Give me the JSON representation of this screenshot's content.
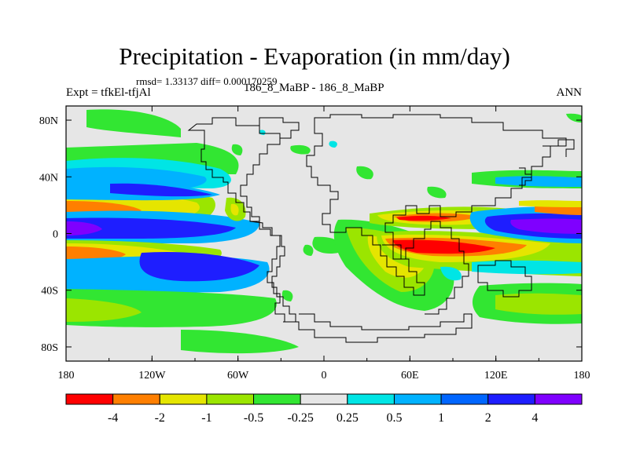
{
  "title": "Precipitation - Evaporation (in mm/day)",
  "stats_line": "rmsd= 1.33137 diff= 0.000170259",
  "experiment_label": "Expt = tfkEl-tfjAl",
  "cases_label": "186_8_MaBP - 186_8_MaBP",
  "season_label": "ANN",
  "colors": {
    "land": "#e6e6e6",
    "coast": "#000000",
    "neg_4": "#ff0000",
    "neg_2": "#ff7f00",
    "neg_1": "#e5e500",
    "neg_05": "#9be500",
    "neg_025": "#32e632",
    "pos_025": "#00e5e5",
    "pos_05": "#00b2ff",
    "pos_1": "#0066ff",
    "pos_2": "#1e1eff",
    "pos_4": "#7f00ff"
  },
  "map": {
    "projection": "cylindrical equidistant",
    "lon_range": [
      -180,
      180
    ],
    "lat_range": [
      -90,
      90
    ],
    "x_ticks": [
      "180",
      "120W",
      "60W",
      "0",
      "60E",
      "120E",
      "180"
    ],
    "y_ticks": [
      "80N",
      "40N",
      "0",
      "40S",
      "80S"
    ],
    "field_bands": [
      {
        "name": "north-subpolar-pacific",
        "class": "neg_025",
        "lon": [
          -180,
          -100
        ],
        "lat": [
          42,
          60
        ]
      },
      {
        "name": "north-midlat-wet",
        "class": "pos_05",
        "lon": [
          -180,
          -90
        ],
        "lat": [
          28,
          42
        ]
      },
      {
        "name": "north-subtropical-dry",
        "class": "neg_1",
        "lon": [
          -180,
          -110
        ],
        "lat": [
          12,
          26
        ]
      },
      {
        "name": "itcz-pacific",
        "class": "pos_2",
        "lon": [
          -180,
          -60
        ],
        "lat": [
          -6,
          10
        ]
      },
      {
        "name": "south-subtropical-dry",
        "class": "neg_2",
        "lon": [
          -180,
          -110
        ],
        "lat": [
          -28,
          -10
        ]
      },
      {
        "name": "south-midlat-wet",
        "class": "pos_1",
        "lon": [
          -180,
          -60
        ],
        "lat": [
          -52,
          -30
        ]
      },
      {
        "name": "indian-ocean-dry",
        "class": "neg_4",
        "lon": [
          30,
          100
        ],
        "lat": [
          -28,
          -8
        ]
      },
      {
        "name": "indian-itcz",
        "class": "pos_4",
        "lon": [
          90,
          180
        ],
        "lat": [
          -8,
          8
        ]
      },
      {
        "name": "south-indian-wet",
        "class": "pos_025",
        "lon": [
          90,
          180
        ],
        "lat": [
          -40,
          -28
        ]
      }
    ]
  },
  "colorbar": {
    "boundaries": [
      "-4",
      "-2",
      "-1",
      "-0.5",
      "-0.25",
      "0.25",
      "0.5",
      "1",
      "2",
      "4"
    ],
    "bins": [
      "neg_4",
      "neg_2",
      "neg_1",
      "neg_05",
      "neg_025",
      "land",
      "pos_025",
      "pos_05",
      "pos_1",
      "pos_2",
      "pos_4"
    ]
  }
}
